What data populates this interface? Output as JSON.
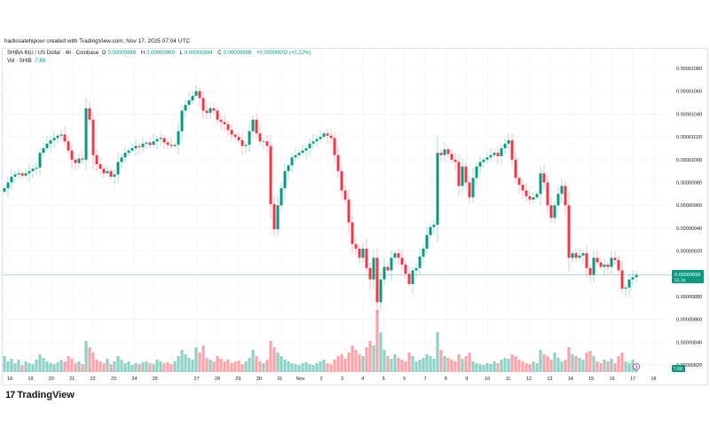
{
  "attribution": "hadissalehipour created with TradingView.com, Nov 17, 2025 07:04 UTC",
  "legend": {
    "symbol": "SHIBA INU / US Dollar · 4h · Coinbase",
    "open_label": "O",
    "open": "0.00000898",
    "high_label": "H",
    "high": "0.00000900",
    "low_label": "L",
    "low": "0.00000894",
    "close_label": "C",
    "close": "0.00000899",
    "change": "+0.00000002 (+0.22%)",
    "volume_label": "Vol · SHIB",
    "volume": "7.68"
  },
  "price_badge": {
    "value": "0.00000899",
    "countdown": "55:34"
  },
  "volume_badge": "7.68",
  "logo_text": "TradingView",
  "colors": {
    "up": "#089981",
    "down": "#F23645",
    "up_volume": "#8ed2c6",
    "down_volume": "#f9a3aa",
    "price_line": "#089981",
    "event_icon": "#9c27b0"
  },
  "chart_data": {
    "type": "candlestick",
    "timeframe": "4h",
    "price_unit": "1e-8 USD",
    "ylim": [
      810,
      1090
    ],
    "grid": true,
    "y_ticks": [
      "0.00001080",
      "0.00001060",
      "0.00001040",
      "0.00001020",
      "0.00001000",
      "0.00000980",
      "0.00000960",
      "0.00000940",
      "0.00000920",
      "0.00000880",
      "0.00000860",
      "0.00000840",
      "0.00000820"
    ],
    "y_tick_values": [
      1080,
      1060,
      1040,
      1020,
      1000,
      980,
      960,
      940,
      920,
      880,
      860,
      840,
      820
    ],
    "x_ticks": [
      "18",
      "19",
      "20",
      "21",
      "22",
      "23",
      "24",
      "25",
      "27",
      "28",
      "29",
      "30",
      "31",
      "Nov",
      "2",
      "3",
      "4",
      "5",
      "6",
      "7",
      "8",
      "9",
      "10",
      "11",
      "12",
      "13",
      "14",
      "15",
      "16",
      "17",
      "18"
    ],
    "closes": [
      975,
      980,
      985,
      987,
      988,
      986,
      988,
      990,
      992,
      993,
      1006,
      1010,
      1014,
      1017,
      1019,
      1021,
      1022,
      1016,
      1008,
      1000,
      997,
      1001,
      1000,
      1045,
      1035,
      1004,
      996,
      992,
      988,
      990,
      985,
      987,
      998,
      1002,
      1006,
      1008,
      1010,
      1012,
      1011,
      1014,
      1015,
      1013,
      1016,
      1018,
      1019,
      1015,
      1013,
      1012,
      1013,
      1025,
      1043,
      1048,
      1052,
      1056,
      1060,
      1054,
      1043,
      1041,
      1045,
      1043,
      1035,
      1033,
      1031,
      1026,
      1022,
      1020,
      1017,
      1012,
      1013,
      1025,
      1035,
      1023,
      1016,
      1016,
      1012,
      961,
      939,
      960,
      975,
      990,
      995,
      1002,
      1004,
      1006,
      1008,
      1010,
      1014,
      1016,
      1018,
      1020,
      1023,
      1021,
      1019,
      1004,
      990,
      973,
      965,
      945,
      926,
      922,
      914,
      922,
      905,
      895,
      914,
      875,
      895,
      906,
      903,
      914,
      918,
      914,
      908,
      900,
      891,
      903,
      905,
      915,
      922,
      934,
      941,
      943,
      1006,
      1004,
      1009,
      1005,
      1000,
      998,
      977,
      994,
      980,
      967,
      984,
      994,
      998,
      1000,
      1002,
      1004,
      1006,
      1003,
      1010,
      1014,
      1017,
      1000,
      984,
      978,
      973,
      968,
      965,
      967,
      970,
      988,
      980,
      960,
      949,
      960,
      970,
      977,
      960,
      914,
      918,
      914,
      916,
      918,
      905,
      899,
      914,
      910,
      906,
      908,
      906,
      914,
      912,
      903,
      887,
      888,
      895,
      897,
      899
    ],
    "volumes_billion": [
      18,
      12,
      15,
      10,
      14,
      8,
      12,
      10,
      9,
      14,
      20,
      16,
      12,
      10,
      9,
      11,
      14,
      12,
      18,
      15,
      10,
      12,
      9,
      35,
      28,
      22,
      14,
      12,
      10,
      15,
      9,
      12,
      18,
      14,
      10,
      12,
      8,
      10,
      9,
      11,
      12,
      10,
      9,
      14,
      12,
      10,
      11,
      9,
      12,
      18,
      25,
      20,
      16,
      14,
      28,
      22,
      30,
      16,
      14,
      12,
      18,
      15,
      12,
      14,
      10,
      12,
      13,
      9,
      12,
      16,
      25,
      18,
      12,
      10,
      14,
      35,
      28,
      22,
      18,
      14,
      12,
      10,
      9,
      8,
      10,
      11,
      9,
      8,
      10,
      12,
      14,
      10,
      9,
      14,
      18,
      20,
      15,
      22,
      30,
      25,
      20,
      18,
      28,
      35,
      30,
      70,
      45,
      25,
      18,
      15,
      20,
      16,
      14,
      12,
      22,
      18,
      12,
      14,
      16,
      20,
      18,
      15,
      45,
      25,
      18,
      16,
      14,
      12,
      20,
      15,
      18,
      22,
      12,
      10,
      9,
      8,
      10,
      9,
      12,
      10,
      14,
      16,
      15,
      20,
      18,
      14,
      12,
      10,
      9,
      12,
      10,
      25,
      20,
      18,
      14,
      22,
      16,
      12,
      14,
      28,
      20,
      18,
      16,
      14,
      22,
      24,
      18,
      12,
      10,
      14,
      12,
      15,
      10,
      18,
      22,
      12,
      10,
      14,
      8
    ]
  }
}
